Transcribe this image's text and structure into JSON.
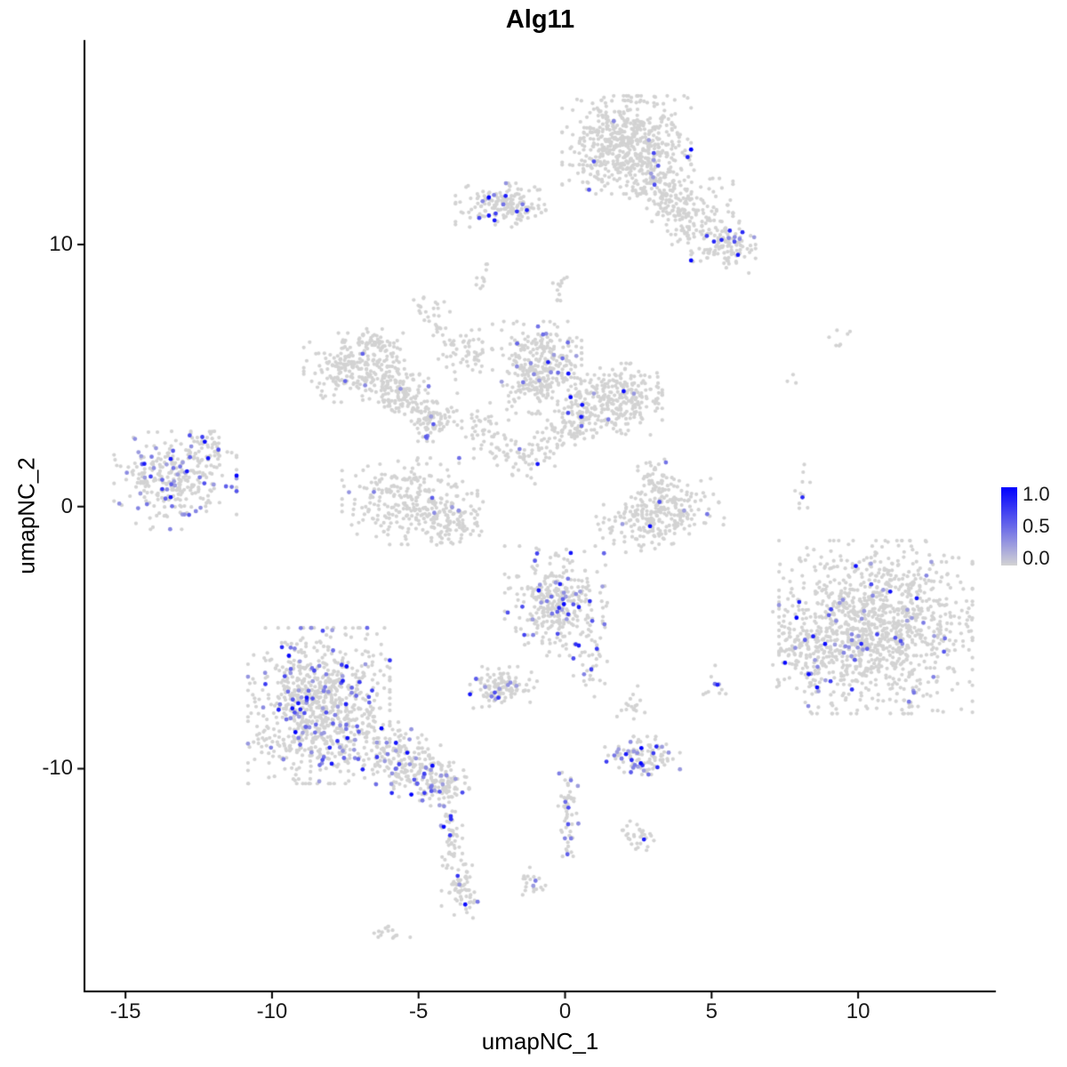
{
  "chart_data": {
    "type": "scatter",
    "title": "Alg11",
    "xlabel": "umapNC_1",
    "ylabel": "umapNC_2",
    "axes": {
      "xlim": [
        -16.4,
        14.7
      ],
      "ylim": [
        -18.5,
        17.8
      ],
      "x_tick_labels": [
        "-15",
        "-10",
        "-5",
        "0",
        "5",
        "10"
      ],
      "x_tick_values": [
        -15,
        -10,
        -5,
        0,
        5,
        10
      ],
      "y_tick_labels": [
        "10",
        "0",
        "-10"
      ],
      "y_tick_values": [
        10,
        0,
        -10
      ],
      "grid": false,
      "axis_lines": [
        "left",
        "bottom"
      ]
    },
    "legend": {
      "position": "right",
      "labels": [
        "1.0",
        "0.5",
        "0.0"
      ],
      "values": [
        1.0,
        0.5,
        0.0
      ]
    },
    "colors": {
      "point_low": "#d3d3d3",
      "point_mid": "#6969e9",
      "point_high": "#0000ff",
      "axis": "#000000",
      "text": "#000000",
      "background": "#ffffff"
    },
    "point_style": {
      "radius_px": 2.1,
      "colored_radius_px": 2.4,
      "seed": 42
    },
    "clusters": [
      {
        "x": 2.1,
        "y": 13.8,
        "sx": 1.0,
        "sy": 0.85,
        "n": 600,
        "frac": 0.03
      },
      {
        "x": 3.3,
        "y": 12.2,
        "sx": 0.5,
        "sy": 0.5,
        "n": 100,
        "frac": 0.02
      },
      {
        "x": 4.3,
        "y": 11.2,
        "sx": 0.65,
        "sy": 0.6,
        "n": 150,
        "frac": 0.02
      },
      {
        "x": 5.4,
        "y": 9.9,
        "sx": 0.5,
        "sy": 0.45,
        "n": 120,
        "frac": 0.06
      },
      {
        "x": -2.2,
        "y": 11.5,
        "sx": 0.7,
        "sy": 0.38,
        "n": 180,
        "frac": 0.06
      },
      {
        "x": -2.8,
        "y": 8.7,
        "sx": 0.12,
        "sy": 0.3,
        "n": 10,
        "frac": 0.0
      },
      {
        "x": -0.8,
        "y": 5.3,
        "sx": 0.62,
        "sy": 0.8,
        "n": 330,
        "frac": 0.035
      },
      {
        "x": 1.6,
        "y": 4.1,
        "sx": 0.78,
        "sy": 0.62,
        "n": 280,
        "frac": 0.03
      },
      {
        "x": 0.3,
        "y": 3.0,
        "sx": 0.5,
        "sy": 0.4,
        "n": 80,
        "frac": 0.02
      },
      {
        "x": -7.2,
        "y": 5.3,
        "sx": 0.78,
        "sy": 0.6,
        "n": 240,
        "frac": 0.02
      },
      {
        "x": -6.5,
        "y": 6.3,
        "sx": 0.3,
        "sy": 0.25,
        "n": 40,
        "frac": 0.0
      },
      {
        "x": -5.6,
        "y": 4.4,
        "sx": 0.55,
        "sy": 0.45,
        "rot": -0.5,
        "n": 110,
        "frac": 0.02
      },
      {
        "x": -4.6,
        "y": 3.4,
        "sx": 0.42,
        "sy": 0.42,
        "n": 90,
        "frac": 0.03
      },
      {
        "x": -5.3,
        "y": 0.2,
        "sx": 1.05,
        "sy": 0.75,
        "n": 270,
        "frac": 0.035
      },
      {
        "x": -3.9,
        "y": -0.6,
        "sx": 0.5,
        "sy": 0.42,
        "n": 90,
        "frac": 0.04
      },
      {
        "x": -13.3,
        "y": 1.0,
        "sx": 0.95,
        "sy": 0.85,
        "n": 300,
        "frac": 0.14
      },
      {
        "x": -12.1,
        "y": 2.2,
        "sx": 0.38,
        "sy": 0.3,
        "n": 40,
        "frac": 0.05
      },
      {
        "x": 3.2,
        "y": -0.3,
        "sx": 0.95,
        "sy": 0.55,
        "rot": 0.3,
        "n": 260,
        "frac": 0.025
      },
      {
        "x": 3.1,
        "y": 1.1,
        "sx": 0.28,
        "sy": 0.42,
        "n": 45,
        "frac": 0.02
      },
      {
        "x": -0.3,
        "y": -3.6,
        "sx": 0.8,
        "sy": 0.95,
        "n": 340,
        "frac": 0.11
      },
      {
        "x": -2.1,
        "y": -6.9,
        "sx": 0.52,
        "sy": 0.36,
        "n": 120,
        "frac": 0.09
      },
      {
        "x": -8.4,
        "y": -7.6,
        "sx": 1.1,
        "sy": 1.35,
        "n": 850,
        "frac": 0.13
      },
      {
        "x": -5.6,
        "y": -9.7,
        "sx": 0.85,
        "sy": 0.55,
        "rot": -0.55,
        "n": 220,
        "frac": 0.14
      },
      {
        "x": -4.2,
        "y": -10.6,
        "sx": 0.42,
        "sy": 0.38,
        "n": 90,
        "frac": 0.16
      },
      {
        "x": -3.9,
        "y": -12.3,
        "sx": 0.18,
        "sy": 0.65,
        "n": 50,
        "frac": 0.08
      },
      {
        "x": -3.6,
        "y": -14.6,
        "sx": 0.28,
        "sy": 0.5,
        "n": 70,
        "frac": 0.12
      },
      {
        "x": 10.6,
        "y": -4.6,
        "sx": 1.5,
        "sy": 1.5,
        "n": 1150,
        "frac": 0.045
      },
      {
        "x": 8.3,
        "y": -5.6,
        "sx": 0.55,
        "sy": 0.75,
        "n": 120,
        "frac": 0.07
      },
      {
        "x": 2.6,
        "y": -9.5,
        "sx": 0.6,
        "sy": 0.33,
        "n": 110,
        "frac": 0.28
      },
      {
        "x": 0.1,
        "y": -11.8,
        "sx": 0.16,
        "sy": 0.75,
        "n": 55,
        "frac": 0.1
      },
      {
        "x": 2.5,
        "y": -12.6,
        "sx": 0.28,
        "sy": 0.33,
        "n": 30,
        "frac": 0.08
      },
      {
        "x": -1.1,
        "y": -14.2,
        "sx": 0.22,
        "sy": 0.28,
        "n": 20,
        "frac": 0.05
      },
      {
        "x": -5.9,
        "y": -16.2,
        "sx": 0.28,
        "sy": 0.16,
        "n": 15,
        "frac": 0.0
      },
      {
        "x": 5.2,
        "y": -6.9,
        "sx": 0.22,
        "sy": 0.38,
        "n": 12,
        "frac": 0.15
      },
      {
        "x": 8.1,
        "y": 0.6,
        "sx": 0.14,
        "sy": 0.5,
        "n": 10,
        "frac": 0.12
      },
      {
        "x": 9.3,
        "y": 6.5,
        "sx": 0.22,
        "sy": 0.28,
        "n": 7,
        "frac": 0.0
      },
      {
        "x": 7.8,
        "y": 4.8,
        "sx": 0.14,
        "sy": 0.14,
        "n": 3,
        "frac": 0.0
      },
      {
        "x": -0.2,
        "y": 8.6,
        "sx": 0.18,
        "sy": 0.42,
        "n": 12,
        "frac": 0.0
      },
      {
        "x": -4.5,
        "y": 7.2,
        "sx": 0.28,
        "sy": 0.48,
        "rot": 0.4,
        "n": 30,
        "frac": 0.0
      },
      {
        "x": -3.4,
        "y": 5.9,
        "sx": 0.42,
        "sy": 0.48,
        "n": 60,
        "frac": 0.02
      },
      {
        "x": -2.6,
        "y": 2.9,
        "sx": 0.42,
        "sy": 0.48,
        "n": 50,
        "frac": 0.02
      },
      {
        "x": -1.3,
        "y": 1.9,
        "sx": 0.48,
        "sy": 0.52,
        "n": 60,
        "frac": 0.03
      },
      {
        "x": 0.9,
        "y": -6.2,
        "sx": 0.28,
        "sy": 0.48,
        "n": 25,
        "frac": 0.05
      },
      {
        "x": 2.3,
        "y": -7.6,
        "sx": 0.24,
        "sy": 0.38,
        "n": 18,
        "frac": 0.05
      }
    ],
    "highlight_points": [
      {
        "x": -2.6,
        "y": 11.8,
        "v": 1.0
      },
      {
        "x": -2.6,
        "y": 11.1,
        "v": 0.9
      },
      {
        "x": 2.0,
        "y": 4.4,
        "v": 0.95
      },
      {
        "x": 5.9,
        "y": 9.6,
        "v": 0.9
      },
      {
        "x": 2.9,
        "y": -0.75,
        "v": 0.95
      },
      {
        "x": 12.0,
        "y": -3.5,
        "v": 0.9
      },
      {
        "x": 8.6,
        "y": -6.9,
        "v": 0.95
      },
      {
        "x": -0.9,
        "y": -3.2,
        "v": 0.9
      },
      {
        "x": 5.2,
        "y": -6.8,
        "v": 0.85
      },
      {
        "x": 8.1,
        "y": 0.35,
        "v": 0.8
      }
    ]
  }
}
